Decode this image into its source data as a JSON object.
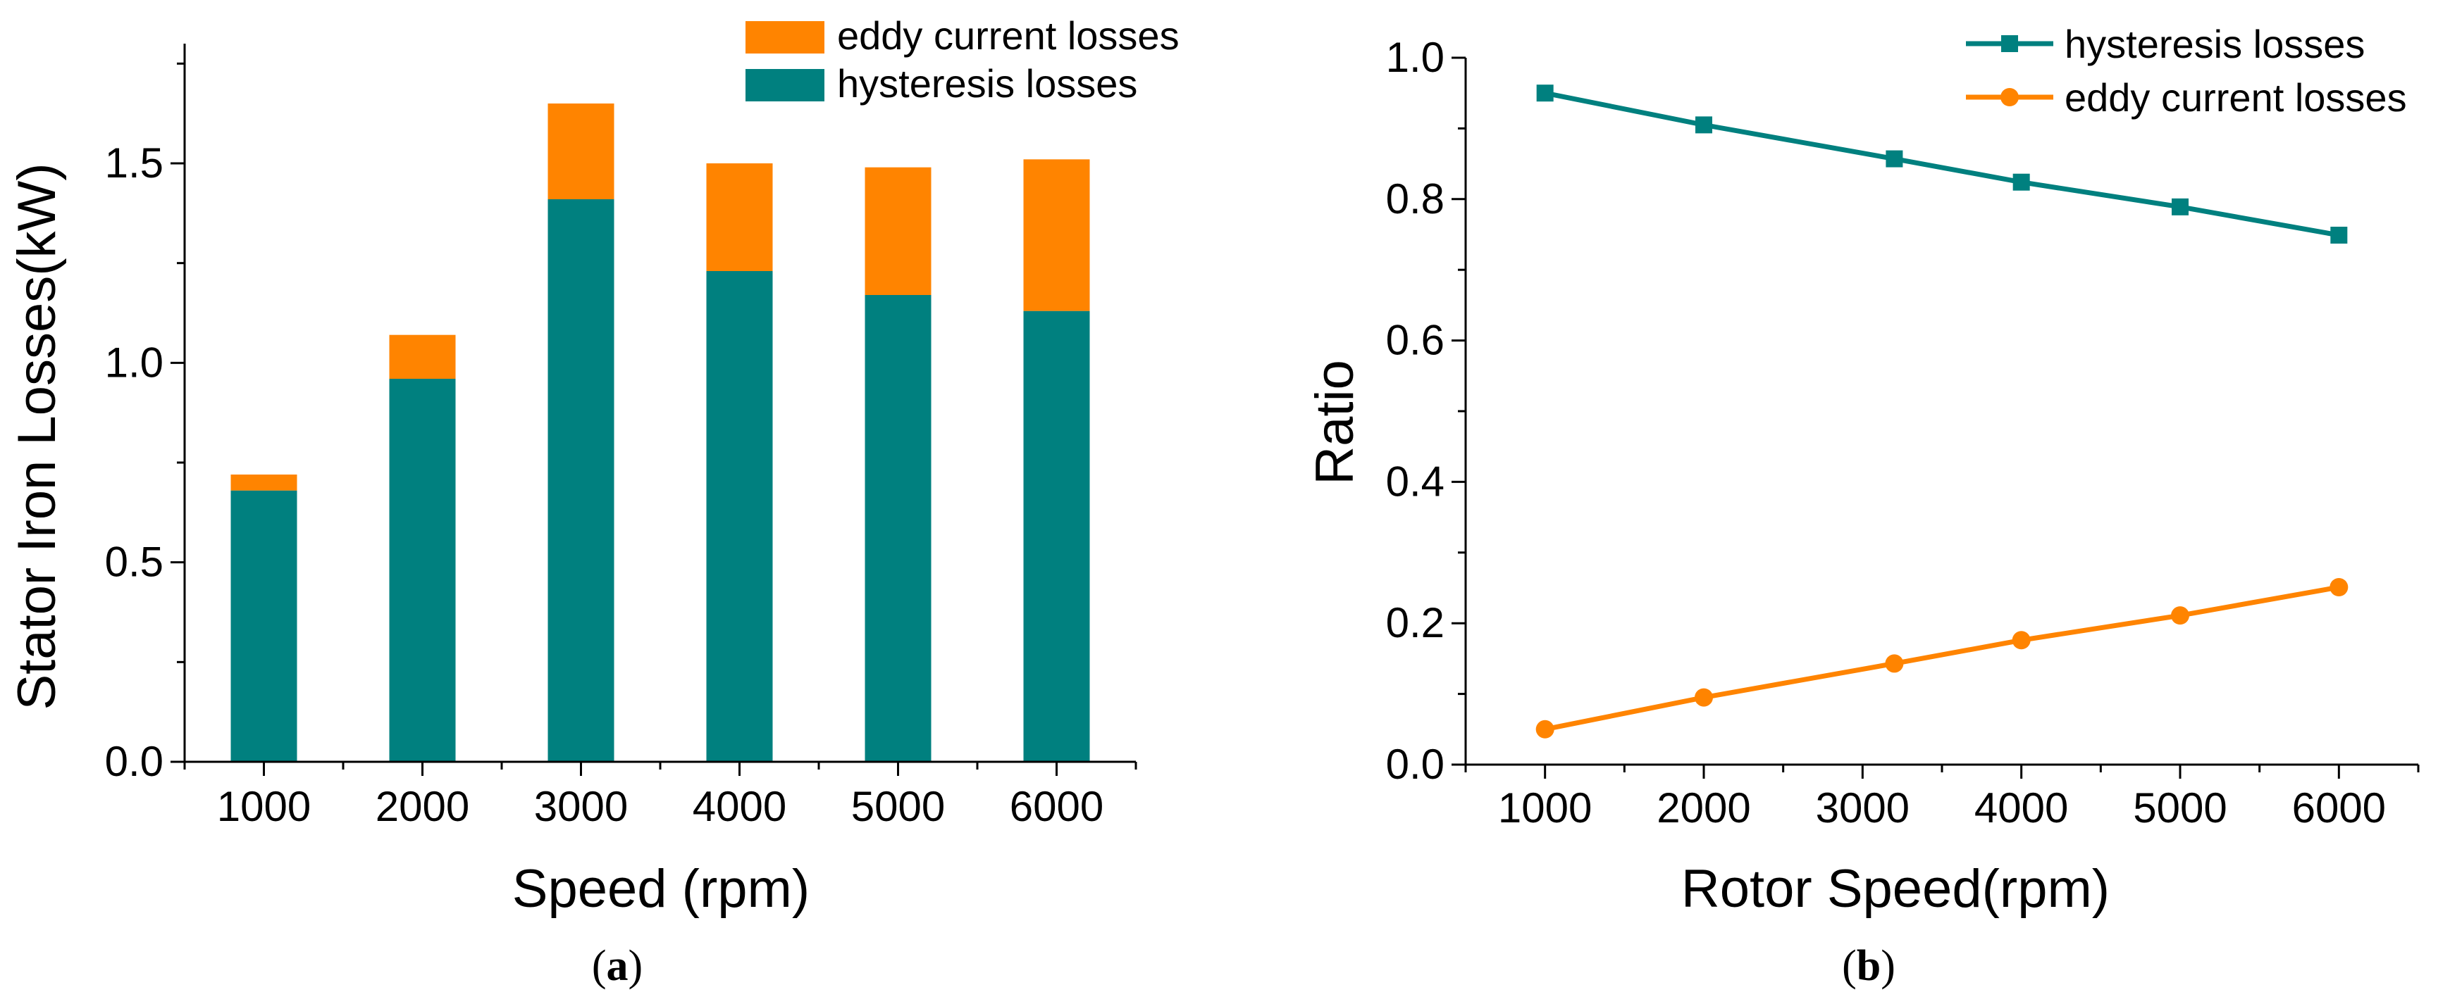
{
  "chart_data": [
    {
      "id": "a",
      "type": "bar",
      "stacked": true,
      "panel_label": "a",
      "title": "",
      "xlabel": "Speed (rpm)",
      "ylabel": "Stator Iron Losses(kW)",
      "x": [
        1000,
        2000,
        3000,
        4000,
        5000,
        6000
      ],
      "categories": [
        "1000",
        "2000",
        "3000",
        "4000",
        "5000",
        "6000"
      ],
      "xlim": [
        500,
        6500
      ],
      "ylim": [
        0,
        1.8
      ],
      "yticks": [
        0.0,
        0.5,
        1.0,
        1.5
      ],
      "ytick_labels": [
        "0.0",
        "0.5",
        "1.0",
        "1.5"
      ],
      "legend_position": "top-right",
      "series": [
        {
          "name": "hysteresis losses",
          "color": "#00807f",
          "values": [
            0.68,
            0.96,
            1.41,
            1.23,
            1.17,
            1.13
          ]
        },
        {
          "name": "eddy current losses",
          "color": "#ff8400",
          "values": [
            0.04,
            0.11,
            0.24,
            0.27,
            0.32,
            0.38
          ]
        }
      ],
      "legend_order": [
        "eddy current losses",
        "hysteresis losses"
      ]
    },
    {
      "id": "b",
      "type": "line",
      "panel_label": "b",
      "title": "",
      "xlabel": "Rotor Speed(rpm)",
      "ylabel": "Ratio",
      "xlim": [
        500,
        6500
      ],
      "ylim": [
        0,
        1.0
      ],
      "xticks": [
        1000,
        2000,
        3000,
        4000,
        5000,
        6000
      ],
      "xtick_labels": [
        "1000",
        "2000",
        "3000",
        "4000",
        "5000",
        "6000"
      ],
      "yticks": [
        0.0,
        0.2,
        0.4,
        0.6,
        0.8,
        1.0
      ],
      "ytick_labels": [
        "0.0",
        "0.2",
        "0.4",
        "0.6",
        "0.8",
        "1.0"
      ],
      "legend_position": "top-right",
      "series": [
        {
          "name": "hysteresis losses",
          "color": "#00807f",
          "marker": "square",
          "x": [
            1000,
            2000,
            3200,
            4000,
            5000,
            6000
          ],
          "y": [
            0.95,
            0.905,
            0.857,
            0.824,
            0.789,
            0.749
          ]
        },
        {
          "name": "eddy current losses",
          "color": "#ff8400",
          "marker": "circle",
          "x": [
            1000,
            2000,
            3200,
            4000,
            5000,
            6000
          ],
          "y": [
            0.05,
            0.095,
            0.143,
            0.176,
            0.211,
            0.251
          ]
        }
      ]
    }
  ]
}
